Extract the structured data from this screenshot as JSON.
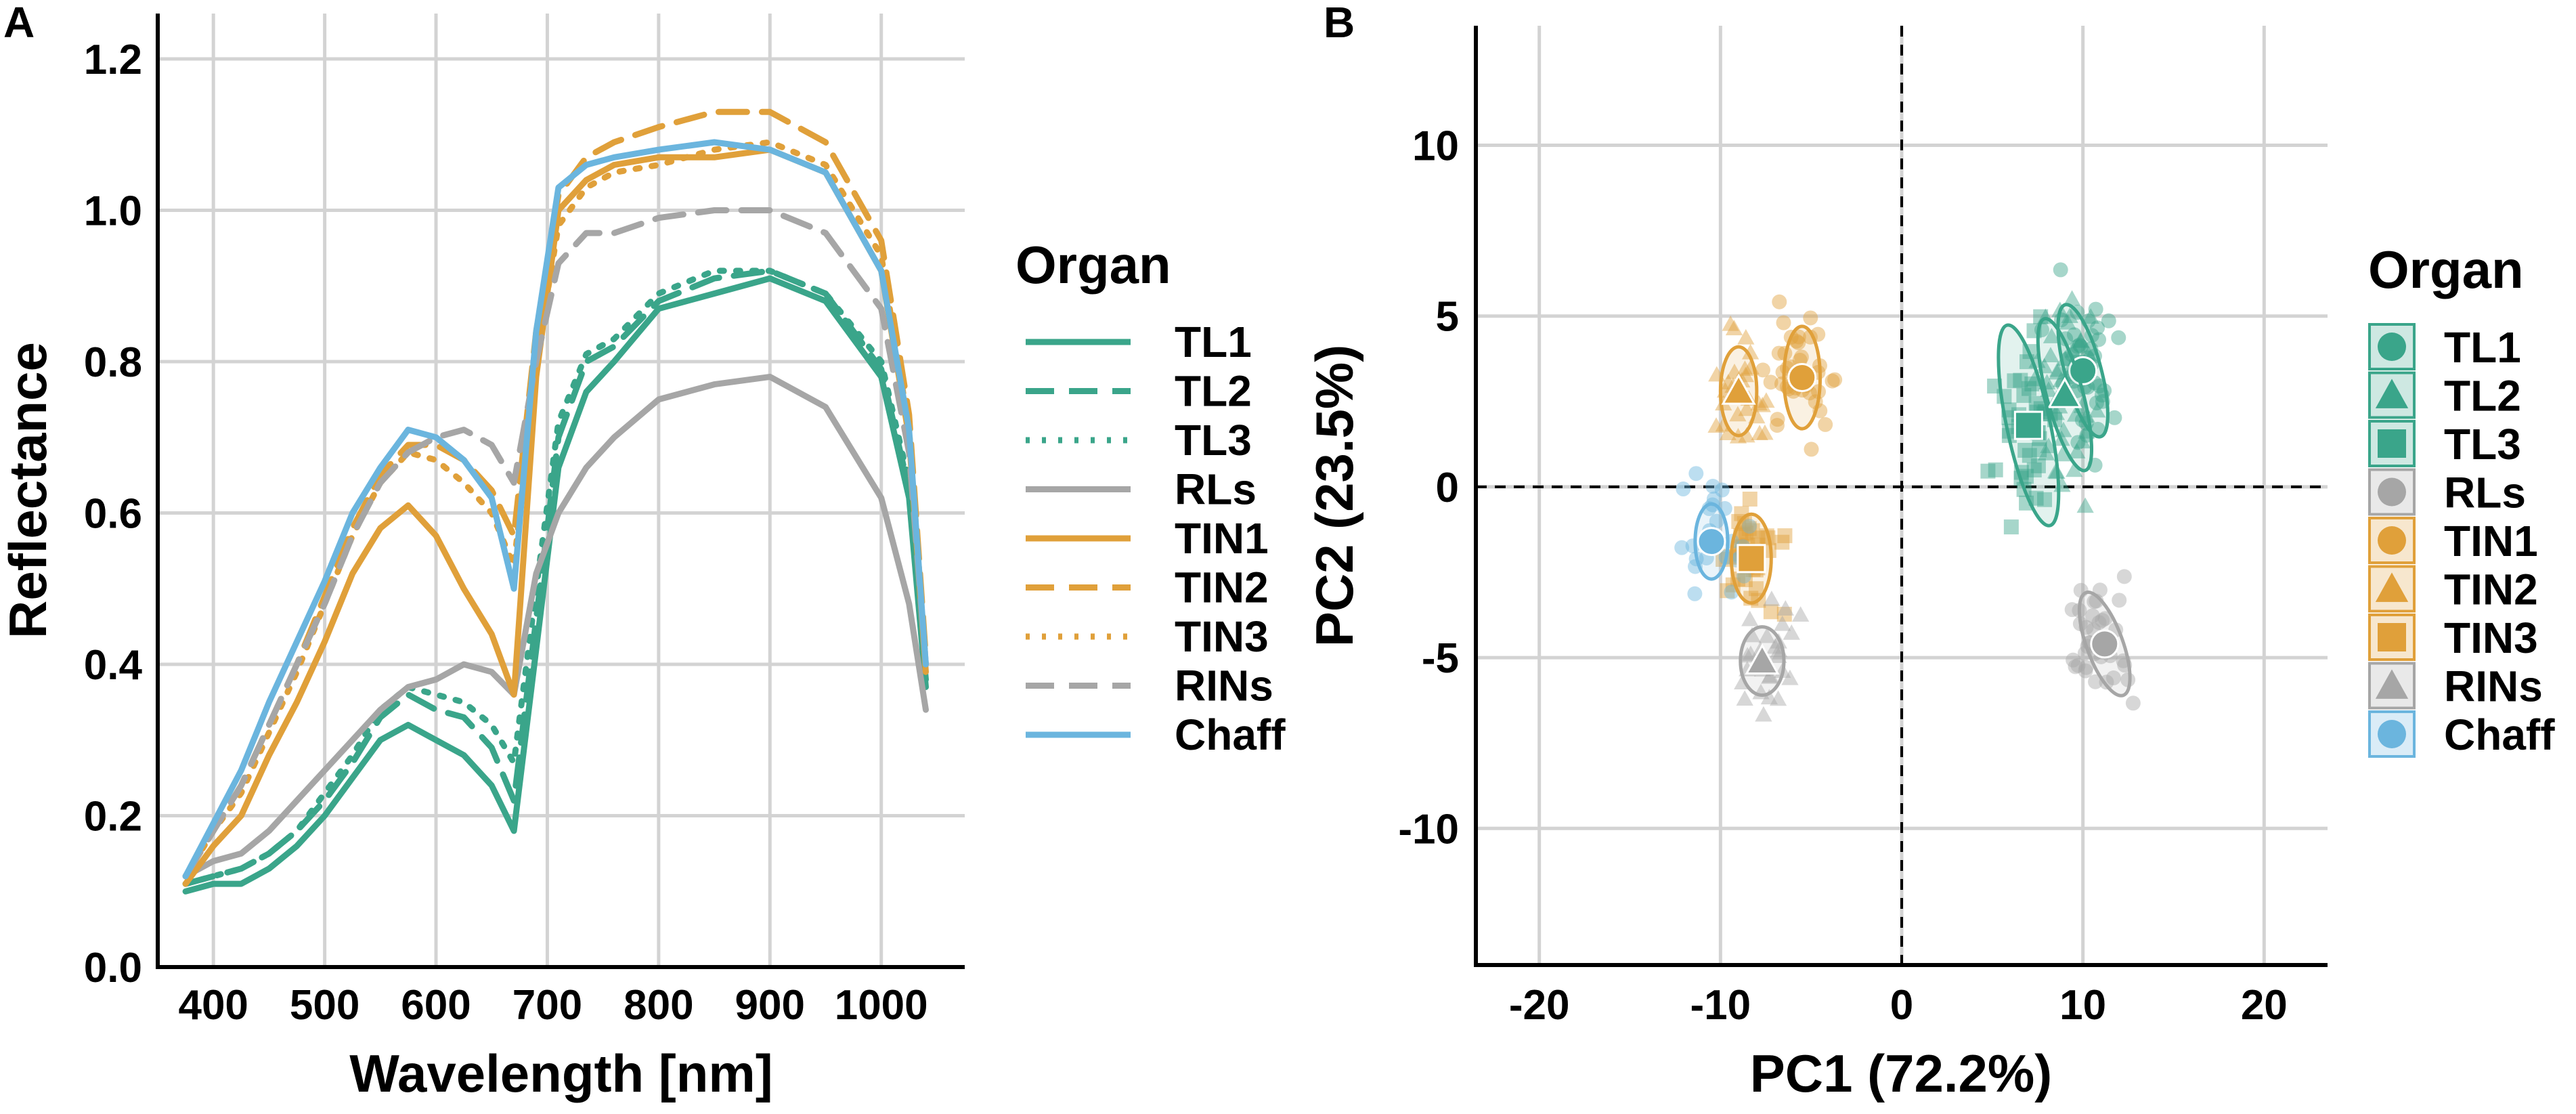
{
  "colors": {
    "green": "#3aa58a",
    "gray": "#a6a6a6",
    "orange": "#e0a03a",
    "blue": "#6bb5de"
  },
  "chart_data": [
    {
      "panel": "A",
      "type": "line",
      "xlabel": "Wavelength [nm]",
      "ylabel": "Reflectance",
      "xlim": [
        350,
        1075
      ],
      "ylim": [
        0.0,
        1.26
      ],
      "xticks": [
        400,
        500,
        600,
        700,
        800,
        900,
        1000
      ],
      "yticks": [
        0.0,
        0.2,
        0.4,
        0.6,
        0.8,
        1.0,
        1.2
      ],
      "ytick_labels": [
        "0.0",
        "0.2",
        "0.4",
        "0.6",
        "0.8",
        "1.0",
        "1.2"
      ],
      "grid": true,
      "legend": {
        "title": "Organ",
        "position": "right"
      },
      "x": [
        375,
        400,
        425,
        450,
        475,
        500,
        525,
        550,
        575,
        600,
        625,
        650,
        670,
        690,
        710,
        735,
        760,
        800,
        850,
        900,
        950,
        1000,
        1025,
        1040
      ],
      "series": [
        {
          "name": "TL1",
          "color": "green",
          "style": "solid",
          "values": [
            0.1,
            0.11,
            0.11,
            0.13,
            0.16,
            0.2,
            0.25,
            0.3,
            0.32,
            0.3,
            0.28,
            0.24,
            0.18,
            0.42,
            0.66,
            0.76,
            0.8,
            0.87,
            0.89,
            0.91,
            0.88,
            0.78,
            0.62,
            0.37
          ]
        },
        {
          "name": "TL2",
          "color": "green",
          "style": "dashed",
          "values": [
            0.11,
            0.12,
            0.13,
            0.15,
            0.18,
            0.22,
            0.27,
            0.33,
            0.36,
            0.34,
            0.33,
            0.29,
            0.22,
            0.46,
            0.7,
            0.8,
            0.82,
            0.88,
            0.91,
            0.92,
            0.89,
            0.79,
            0.63,
            0.38
          ]
        },
        {
          "name": "TL3",
          "color": "green",
          "style": "dotted",
          "values": [
            0.11,
            0.12,
            0.13,
            0.15,
            0.18,
            0.23,
            0.28,
            0.34,
            0.37,
            0.36,
            0.35,
            0.32,
            0.27,
            0.5,
            0.72,
            0.81,
            0.83,
            0.89,
            0.92,
            0.92,
            0.89,
            0.8,
            0.64,
            0.38
          ]
        },
        {
          "name": "RLs",
          "color": "gray",
          "style": "solid",
          "values": [
            0.12,
            0.14,
            0.15,
            0.18,
            0.22,
            0.26,
            0.3,
            0.34,
            0.37,
            0.38,
            0.4,
            0.39,
            0.36,
            0.52,
            0.6,
            0.66,
            0.7,
            0.75,
            0.77,
            0.78,
            0.74,
            0.62,
            0.48,
            0.34
          ]
        },
        {
          "name": "TIN1",
          "color": "orange",
          "style": "solid",
          "values": [
            0.11,
            0.16,
            0.2,
            0.28,
            0.35,
            0.43,
            0.52,
            0.58,
            0.61,
            0.57,
            0.5,
            0.44,
            0.36,
            0.78,
            1.0,
            1.04,
            1.06,
            1.07,
            1.07,
            1.08,
            1.05,
            0.92,
            0.7,
            0.39
          ]
        },
        {
          "name": "TIN2",
          "color": "orange",
          "style": "dashed",
          "values": [
            0.12,
            0.18,
            0.24,
            0.32,
            0.4,
            0.49,
            0.58,
            0.65,
            0.69,
            0.69,
            0.67,
            0.63,
            0.57,
            0.84,
            1.02,
            1.07,
            1.09,
            1.11,
            1.13,
            1.13,
            1.09,
            0.96,
            0.73,
            0.41
          ]
        },
        {
          "name": "TIN3",
          "color": "orange",
          "style": "dotted",
          "values": [
            0.12,
            0.18,
            0.23,
            0.31,
            0.39,
            0.48,
            0.57,
            0.64,
            0.68,
            0.67,
            0.64,
            0.6,
            0.53,
            0.8,
            0.98,
            1.03,
            1.05,
            1.06,
            1.08,
            1.09,
            1.06,
            0.94,
            0.71,
            0.4
          ]
        },
        {
          "name": "RINs",
          "color": "gray",
          "style": "dashed",
          "values": [
            0.12,
            0.18,
            0.24,
            0.32,
            0.4,
            0.48,
            0.57,
            0.64,
            0.68,
            0.7,
            0.71,
            0.69,
            0.64,
            0.8,
            0.93,
            0.97,
            0.97,
            0.99,
            1.0,
            1.0,
            0.97,
            0.87,
            0.68,
            0.4
          ]
        },
        {
          "name": "Chaff",
          "color": "blue",
          "style": "solid",
          "values": [
            0.12,
            0.19,
            0.26,
            0.35,
            0.43,
            0.51,
            0.6,
            0.66,
            0.71,
            0.7,
            0.67,
            0.62,
            0.5,
            0.84,
            1.03,
            1.06,
            1.07,
            1.08,
            1.09,
            1.08,
            1.05,
            0.92,
            0.71,
            0.4
          ]
        }
      ]
    },
    {
      "panel": "B",
      "type": "scatter",
      "xlabel": "PC1 (72.2%)",
      "ylabel": "PC2 (23.5%)",
      "xlim": [
        -23.5,
        23.5
      ],
      "ylim": [
        -14,
        13.5
      ],
      "xticks": [
        -20,
        -10,
        0,
        10,
        20
      ],
      "yticks": [
        -10,
        -5,
        0,
        5,
        10
      ],
      "grid": true,
      "reference_lines": {
        "x": 0,
        "y": 0,
        "style": "dashed"
      },
      "legend": {
        "title": "Organ",
        "position": "right"
      },
      "groups": [
        {
          "name": "TL1",
          "color": "green",
          "marker": "circle",
          "mean": [
            10.0,
            3.4
          ],
          "ellipse": [
            1.0,
            2.0,
            -15
          ],
          "n_points": 45,
          "spread": [
            3.0,
            4.5
          ]
        },
        {
          "name": "TL2",
          "color": "green",
          "marker": "triangle",
          "mean": [
            9.0,
            2.7
          ],
          "ellipse": [
            1.0,
            2.3,
            -15
          ],
          "n_points": 45,
          "spread": [
            3.0,
            4.5
          ]
        },
        {
          "name": "TL3",
          "color": "green",
          "marker": "square",
          "mean": [
            7.0,
            1.8
          ],
          "ellipse": [
            1.2,
            3.0,
            -12
          ],
          "n_points": 45,
          "spread": [
            3.0,
            4.5
          ]
        },
        {
          "name": "RLs",
          "color": "gray",
          "marker": "circle",
          "mean": [
            11.2,
            -4.6
          ],
          "ellipse": [
            1.0,
            1.6,
            -20
          ],
          "n_points": 35,
          "spread": [
            3.5,
            2.8
          ]
        },
        {
          "name": "TIN1",
          "color": "orange",
          "marker": "circle",
          "mean": [
            -5.5,
            3.2
          ],
          "ellipse": [
            1.0,
            1.5,
            0
          ],
          "n_points": 40,
          "spread": [
            3.0,
            3.0
          ]
        },
        {
          "name": "TIN2",
          "color": "orange",
          "marker": "triangle",
          "mean": [
            -9.0,
            2.8
          ],
          "ellipse": [
            1.0,
            1.3,
            0
          ],
          "n_points": 30,
          "spread": [
            3.0,
            3.0
          ]
        },
        {
          "name": "TIN3",
          "color": "orange",
          "marker": "square",
          "mean": [
            -8.3,
            -2.1
          ],
          "ellipse": [
            1.1,
            1.3,
            0
          ],
          "n_points": 40,
          "spread": [
            3.0,
            2.8
          ]
        },
        {
          "name": "RINs",
          "color": "gray",
          "marker": "triangle",
          "mean": [
            -7.7,
            -5.1
          ],
          "ellipse": [
            1.2,
            1.0,
            0
          ],
          "n_points": 30,
          "spread": [
            3.0,
            3.0
          ]
        },
        {
          "name": "Chaff",
          "color": "blue",
          "marker": "circle",
          "mean": [
            -10.5,
            -1.6
          ],
          "ellipse": [
            0.9,
            1.1,
            0
          ],
          "n_points": 25,
          "spread": [
            4.0,
            3.5
          ]
        }
      ]
    }
  ]
}
